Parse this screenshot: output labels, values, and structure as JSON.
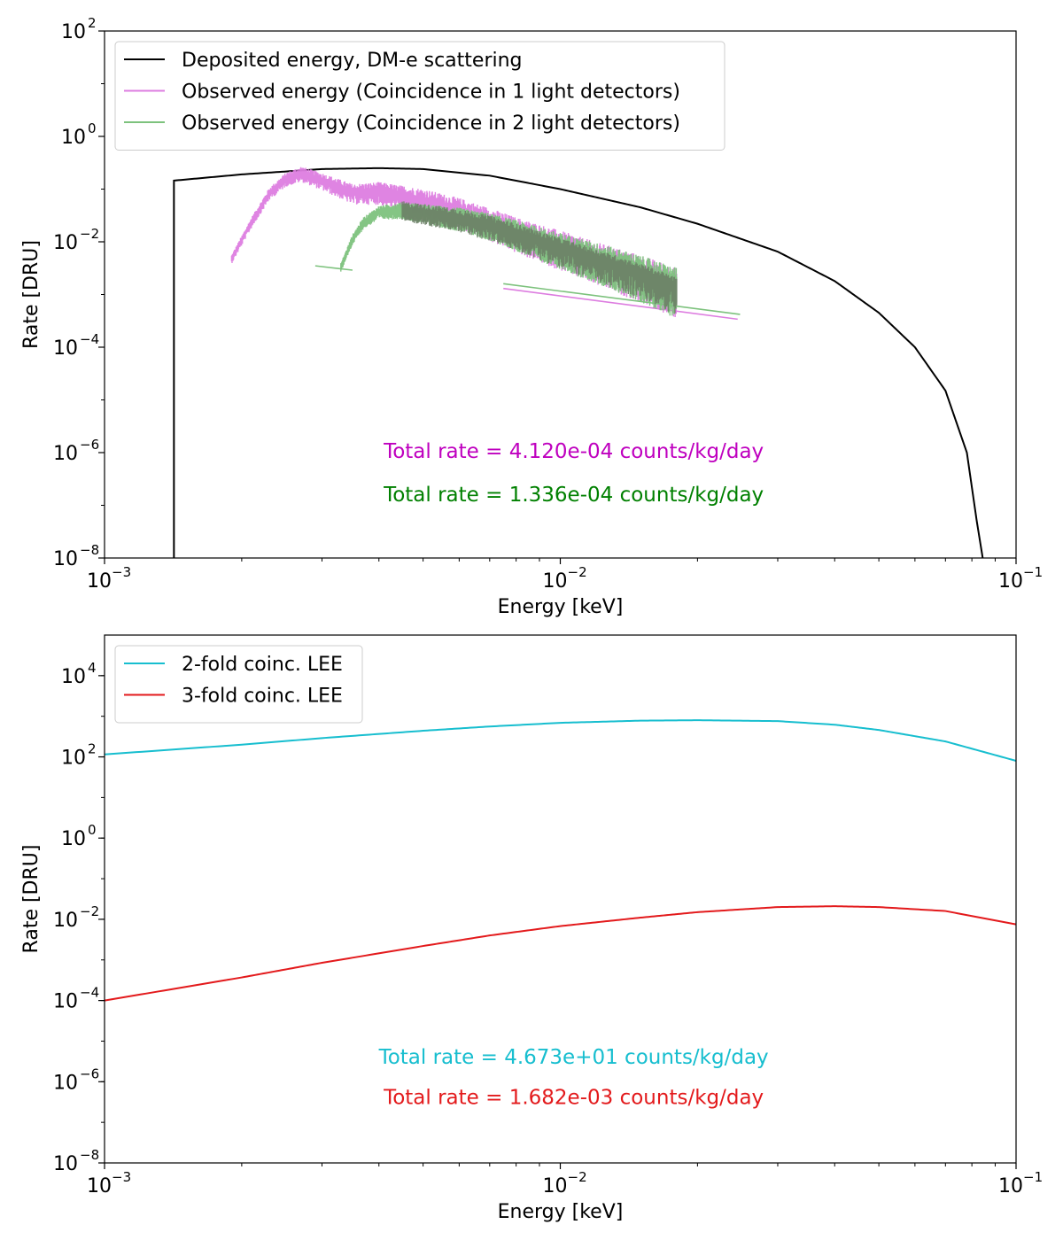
{
  "chart_data": [
    {
      "type": "line",
      "title": "",
      "xlabel": "Energy [keV]",
      "ylabel": "Rate [DRU]",
      "x_scale": "log",
      "y_scale": "log",
      "xlim": [
        0.001,
        0.1
      ],
      "ylim": [
        1e-08,
        100
      ],
      "x_ticks": [
        {
          "value": 0.001,
          "base": "10",
          "exp": "−3"
        },
        {
          "value": 0.01,
          "base": "10",
          "exp": "−2"
        },
        {
          "value": 0.1,
          "base": "10",
          "exp": "−1"
        }
      ],
      "y_ticks": [
        {
          "value": 1e-08,
          "base": "10",
          "exp": "−8"
        },
        {
          "value": 1e-06,
          "base": "10",
          "exp": "−6"
        },
        {
          "value": 0.0001,
          "base": "10",
          "exp": "−4"
        },
        {
          "value": 0.01,
          "base": "10",
          "exp": "−2"
        },
        {
          "value": 1,
          "base": "10",
          "exp": "0"
        },
        {
          "value": 100,
          "base": "10",
          "exp": "2"
        }
      ],
      "grid": false,
      "legend_position": "top-left",
      "series": [
        {
          "name": "Deposited energy, DM-e scattering",
          "color": "#000000",
          "style": "smooth",
          "x": [
            0.00142,
            0.00142,
            0.002,
            0.003,
            0.004,
            0.005,
            0.007,
            0.01,
            0.015,
            0.02,
            0.03,
            0.04,
            0.05,
            0.06,
            0.07,
            0.078,
            0.082,
            0.0845
          ],
          "y": [
            1e-08,
            0.145,
            0.19,
            0.24,
            0.25,
            0.24,
            0.18,
            0.1,
            0.045,
            0.022,
            0.0065,
            0.0018,
            0.00045,
            0.0001,
            1.5e-05,
            1e-06,
            5e-08,
            1e-08
          ]
        },
        {
          "name": "Observed energy (Coincidence in 1 light detectors)",
          "color": "#dd7de0",
          "style": "noisy",
          "x": [
            0.0019,
            0.0021,
            0.0023,
            0.0025,
            0.0027,
            0.003,
            0.0035,
            0.004,
            0.005,
            0.006,
            0.007,
            0.008,
            0.01,
            0.012,
            0.014,
            0.016,
            0.018
          ],
          "y": [
            0.005,
            0.025,
            0.09,
            0.17,
            0.22,
            0.16,
            0.095,
            0.1,
            0.07,
            0.045,
            0.028,
            0.018,
            0.0095,
            0.0055,
            0.0036,
            0.0024,
            0.0016
          ],
          "tail_x": [
            0.0075,
            0.0245
          ],
          "tail_y": [
            0.0013,
            0.00034
          ]
        },
        {
          "name": "Observed energy (Coincidence in 2 light detectors)",
          "color": "#7dc27d",
          "style": "noisy",
          "x": [
            0.0033,
            0.0035,
            0.0037,
            0.004,
            0.0045,
            0.005,
            0.006,
            0.007,
            0.008,
            0.01,
            0.012,
            0.014,
            0.016,
            0.018
          ],
          "y": [
            0.0035,
            0.012,
            0.025,
            0.04,
            0.045,
            0.04,
            0.032,
            0.024,
            0.017,
            0.009,
            0.0055,
            0.0036,
            0.0024,
            0.0016
          ],
          "tail_x": [
            0.0029,
            0.0035
          ],
          "tail_y": [
            0.0035,
            0.0029
          ],
          "tail2_x": [
            0.0075,
            0.0248
          ],
          "tail2_y": [
            0.0016,
            0.00042
          ]
        }
      ],
      "annotations": [
        {
          "text": "Total rate = 4.120e-04 counts/kg/day",
          "color": "#bf00bf",
          "x": 0.0107,
          "y": 8e-07
        },
        {
          "text": "Total rate = 1.336e-04 counts/kg/day",
          "color": "#008000",
          "x": 0.0107,
          "y": 1.2e-07
        }
      ]
    },
    {
      "type": "line",
      "title": "",
      "xlabel": "Energy [keV]",
      "ylabel": "Rate [DRU]",
      "x_scale": "log",
      "y_scale": "log",
      "xlim": [
        0.001,
        0.1
      ],
      "ylim": [
        1e-08,
        100000
      ],
      "x_ticks": [
        {
          "value": 0.001,
          "base": "10",
          "exp": "−3"
        },
        {
          "value": 0.01,
          "base": "10",
          "exp": "−2"
        },
        {
          "value": 0.1,
          "base": "10",
          "exp": "−1"
        }
      ],
      "y_ticks": [
        {
          "value": 1e-08,
          "base": "10",
          "exp": "−8"
        },
        {
          "value": 1e-06,
          "base": "10",
          "exp": "−6"
        },
        {
          "value": 0.0001,
          "base": "10",
          "exp": "−4"
        },
        {
          "value": 0.01,
          "base": "10",
          "exp": "−2"
        },
        {
          "value": 1,
          "base": "10",
          "exp": "0"
        },
        {
          "value": 100,
          "base": "10",
          "exp": "2"
        },
        {
          "value": 10000,
          "base": "10",
          "exp": "4"
        }
      ],
      "grid": false,
      "legend_position": "top-left",
      "series": [
        {
          "name": "2-fold coinc. LEE",
          "color": "#17becf",
          "style": "smooth",
          "x": [
            0.001,
            0.002,
            0.003,
            0.005,
            0.007,
            0.01,
            0.015,
            0.02,
            0.03,
            0.04,
            0.05,
            0.07,
            0.1
          ],
          "y": [
            115,
            200,
            290,
            440,
            560,
            690,
            780,
            800,
            760,
            620,
            460,
            240,
            80
          ]
        },
        {
          "name": "3-fold coinc. LEE",
          "color": "#e31a1c",
          "style": "smooth",
          "x": [
            0.001,
            0.002,
            0.003,
            0.005,
            0.007,
            0.01,
            0.015,
            0.02,
            0.03,
            0.04,
            0.05,
            0.07,
            0.1
          ],
          "y": [
            0.0001,
            0.00037,
            0.00085,
            0.0022,
            0.004,
            0.0068,
            0.011,
            0.015,
            0.02,
            0.021,
            0.02,
            0.016,
            0.0075
          ]
        }
      ],
      "annotations": [
        {
          "text": "Total rate = 4.673e+01 counts/kg/day",
          "color": "#17becf",
          "x": 0.0107,
          "y": 2.8e-06
        },
        {
          "text": "Total rate = 1.682e-03 counts/kg/day",
          "color": "#e31a1c",
          "x": 0.0107,
          "y": 2.8e-07
        }
      ]
    }
  ]
}
